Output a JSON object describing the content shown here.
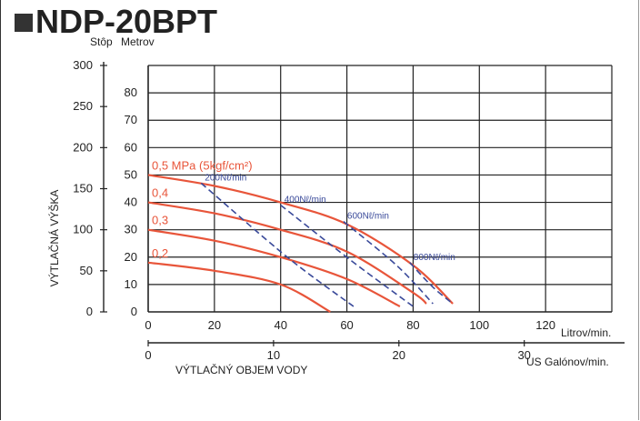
{
  "chart_data": {
    "type": "line",
    "title": "NDP-20BPT",
    "unit_label_ft": "Stôp",
    "unit_label_m": "Metrov",
    "ylabel": "VÝTLAČNÁ VÝŠKA",
    "xlabel": "VÝTLAČNÝ OBJEM VODY",
    "x_unit_lpm": "Litrov/min.",
    "x_unit_gpm": "US Galónov/min.",
    "xlim_lpm": [
      0,
      140
    ],
    "ylim_m": [
      0,
      90
    ],
    "ylim_ft": [
      0,
      300
    ],
    "y_ticks_m": [
      "0",
      "10",
      "20",
      "30",
      "40",
      "50",
      "60",
      "70",
      "80"
    ],
    "y_ticks_ft": [
      "0",
      "50",
      "100",
      "150",
      "200",
      "250",
      "300"
    ],
    "x_ticks_lpm": [
      "0",
      "20",
      "40",
      "60",
      "80",
      "100",
      "120"
    ],
    "x_ticks_gpm": [
      "0",
      "10",
      "20",
      "30"
    ],
    "grid": true,
    "pressure_series": [
      {
        "name": "0,5 MPa (5kgf/cm²)",
        "color": "#e8553a",
        "x": [
          0,
          20,
          40,
          60,
          80,
          92
        ],
        "y": [
          50,
          46,
          40,
          32,
          17,
          3
        ]
      },
      {
        "name": "0,4",
        "color": "#e8553a",
        "x": [
          0,
          20,
          40,
          60,
          80,
          84
        ],
        "y": [
          40,
          36,
          30,
          22,
          7,
          3
        ]
      },
      {
        "name": "0,3",
        "color": "#e8553a",
        "x": [
          0,
          20,
          40,
          60,
          76
        ],
        "y": [
          30,
          26,
          20,
          12,
          2
        ]
      },
      {
        "name": "0,2",
        "color": "#e8553a",
        "x": [
          0,
          20,
          40,
          55
        ],
        "y": [
          18,
          15,
          10,
          0
        ]
      }
    ],
    "air_series": [
      {
        "name": "200Nℓ/min",
        "color": "#3a4a9a",
        "x": [
          16,
          42,
          62
        ],
        "y": [
          47,
          20,
          2
        ]
      },
      {
        "name": "400Nℓ/min",
        "color": "#3a4a9a",
        "x": [
          40,
          61,
          80
        ],
        "y": [
          39,
          19,
          2
        ]
      },
      {
        "name": "600Nℓ/min",
        "color": "#3a4a9a",
        "x": [
          59,
          75,
          86
        ],
        "y": [
          33,
          17,
          3
        ]
      },
      {
        "name": "800Nℓ/min",
        "color": "#3a4a9a",
        "x": [
          79,
          86,
          92
        ],
        "y": [
          18,
          9,
          3
        ]
      }
    ]
  }
}
